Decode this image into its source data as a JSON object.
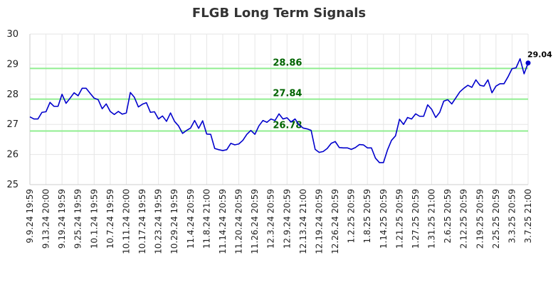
{
  "chart_data": {
    "type": "line",
    "title": "FLGB Long Term Signals",
    "xlabel": "",
    "ylabel": "",
    "ylim": [
      25,
      30
    ],
    "y_ticks": [
      "25",
      "26",
      "27",
      "28",
      "29",
      "30"
    ],
    "x_tick_labels": [
      "9.9.24 19:59",
      "9.13.24 20:00",
      "9.19.24 19:59",
      "9.25.24 19:59",
      "10.1.24 19:59",
      "10.7.24 19:59",
      "10.11.24 20:00",
      "10.17.24 19:59",
      "10.23.24 19:59",
      "10.29.24 19:59",
      "11.4.24 20:59",
      "11.8.24 21:00",
      "11.14.24 20:59",
      "11.20.24 20:59",
      "11.26.24 20:59",
      "12.3.24 20:59",
      "12.9.24 20:59",
      "12.13.24 21:00",
      "12.19.24 20:59",
      "12.26.24 20:59",
      "1.2.25 20:59",
      "1.8.25 20:59",
      "1.14.25 20:59",
      "1.21.25 20:59",
      "1.27.25 20:59",
      "1.31.25 21:00",
      "2.6.25 20:59",
      "2.12.25 20:59",
      "2.19.25 20:59",
      "2.25.25 20:59",
      "3.3.25 20:59",
      "3.7.25 21:00"
    ],
    "grid": true,
    "series": [
      {
        "color": "#0000cc",
        "values": [
          27.25,
          27.18,
          27.18,
          27.4,
          27.42,
          27.73,
          27.6,
          27.6,
          28.0,
          27.7,
          27.87,
          28.05,
          27.95,
          28.2,
          28.2,
          28.03,
          27.87,
          27.82,
          27.52,
          27.68,
          27.43,
          27.33,
          27.43,
          27.34,
          27.38,
          28.06,
          27.9,
          27.58,
          27.67,
          27.72,
          27.4,
          27.42,
          27.18,
          27.28,
          27.1,
          27.38,
          27.1,
          26.95,
          26.7,
          26.8,
          26.88,
          27.13,
          26.87,
          27.12,
          26.68,
          26.67,
          26.2,
          26.16,
          26.13,
          26.16,
          26.37,
          26.32,
          26.35,
          26.47,
          26.67,
          26.8,
          26.67,
          26.95,
          27.13,
          27.07,
          27.18,
          27.13,
          27.35,
          27.18,
          27.22,
          27.08,
          27.18,
          26.98,
          26.88,
          26.85,
          26.8,
          26.17,
          26.07,
          26.1,
          26.2,
          26.37,
          26.43,
          26.23,
          26.22,
          26.22,
          26.17,
          26.23,
          26.33,
          26.32,
          26.22,
          26.22,
          25.88,
          25.73,
          25.73,
          26.15,
          26.47,
          26.62,
          27.17,
          27.0,
          27.23,
          27.18,
          27.35,
          27.27,
          27.27,
          27.65,
          27.5,
          27.23,
          27.4,
          27.77,
          27.82,
          27.68,
          27.88,
          28.08,
          28.2,
          28.3,
          28.23,
          28.48,
          28.3,
          28.27,
          28.48,
          28.05,
          28.27,
          28.35,
          28.35,
          28.58,
          28.85,
          28.88,
          29.18,
          28.68,
          29.04
        ]
      }
    ],
    "reference_lines": [
      {
        "value": 28.86,
        "label": "28.86",
        "color": "#90ee90",
        "label_color": "#006400"
      },
      {
        "value": 27.84,
        "label": "27.84",
        "color": "#90ee90",
        "label_color": "#006400"
      },
      {
        "value": 26.78,
        "label": "26.78",
        "color": "#90ee90",
        "label_color": "#006400"
      }
    ],
    "last_value": {
      "value": 29.04,
      "label": "29.04"
    }
  }
}
